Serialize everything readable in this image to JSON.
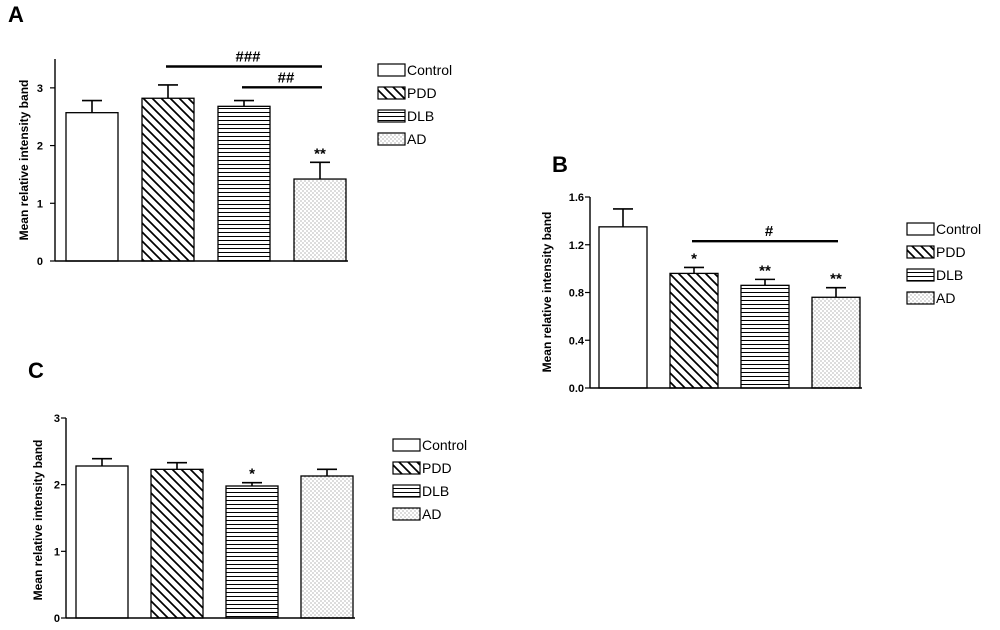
{
  "chart_data": [
    {
      "type": "bar",
      "panel": "A",
      "ylabel": "Mean relative intensity band",
      "ylim": [
        0,
        3.5
      ],
      "yticks": [
        "0",
        "1",
        "2",
        "3"
      ],
      "categories": [
        "Control",
        "PDD",
        "DLB",
        "AD"
      ],
      "values": [
        2.57,
        2.82,
        2.68,
        1.42
      ],
      "errors": [
        0.21,
        0.23,
        0.1,
        0.29
      ],
      "patterns": [
        "solid",
        "diag",
        "horiz",
        "dots"
      ],
      "bar_labels": [
        "",
        "",
        "",
        "**"
      ],
      "brackets": [
        {
          "from": 1,
          "to": 3,
          "y": 3.37,
          "label": "###"
        },
        {
          "from": 2,
          "to": 3,
          "y": 3.01,
          "label": "##"
        }
      ],
      "legend": [
        "Control",
        "PDD",
        "DLB",
        "AD"
      ]
    },
    {
      "type": "bar",
      "panel": "B",
      "ylabel": "Mean relative intensity band",
      "ylim": [
        0,
        1.6
      ],
      "yticks": [
        "0.0",
        "0.4",
        "0.8",
        "1.2",
        "1.6"
      ],
      "categories": [
        "Control",
        "PDD",
        "DLB",
        "AD"
      ],
      "values": [
        1.35,
        0.96,
        0.86,
        0.76
      ],
      "errors": [
        0.15,
        0.05,
        0.05,
        0.08
      ],
      "patterns": [
        "solid",
        "diag",
        "horiz",
        "dots"
      ],
      "bar_labels": [
        "",
        "*",
        "**",
        "**"
      ],
      "brackets": [
        {
          "from": 1,
          "to": 3,
          "y": 1.23,
          "label": "#"
        }
      ],
      "legend": [
        "Control",
        "PDD",
        "DLB",
        "AD"
      ]
    },
    {
      "type": "bar",
      "panel": "C",
      "ylabel": "Mean relative intensity band",
      "ylim": [
        0,
        3
      ],
      "yticks": [
        "0",
        "1",
        "2",
        "3"
      ],
      "categories": [
        "Control",
        "PDD",
        "DLB",
        "AD"
      ],
      "values": [
        2.28,
        2.23,
        1.98,
        2.13
      ],
      "errors": [
        0.11,
        0.1,
        0.05,
        0.1
      ],
      "patterns": [
        "solid",
        "diag",
        "horiz",
        "dots"
      ],
      "bar_labels": [
        "",
        "",
        "*",
        ""
      ],
      "brackets": [],
      "legend": [
        "Control",
        "PDD",
        "DLB",
        "AD"
      ]
    }
  ]
}
